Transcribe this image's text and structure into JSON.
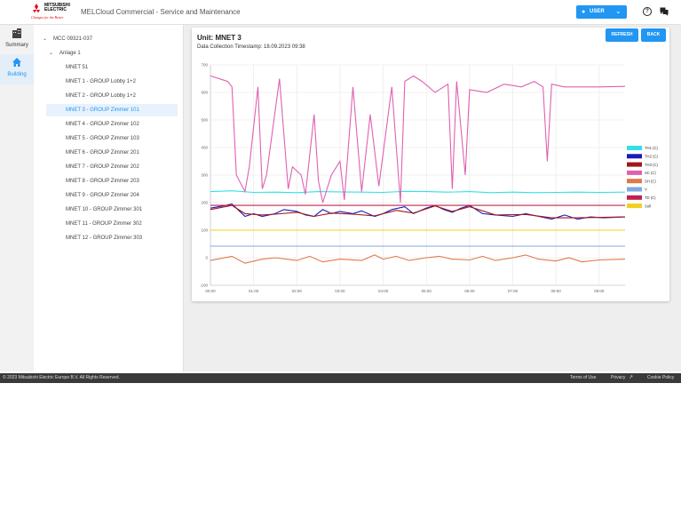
{
  "header": {
    "brand_line1": "MITSUBISHI",
    "brand_line2": "ELECTRIC",
    "brand_tagline": "Changes for the Better",
    "app_title": "MELCloud Commercial - Service and Maintenance",
    "user_button": "USER",
    "help_icon": "help-circle-icon",
    "chat_icon": "chat-icon"
  },
  "nav": {
    "items": [
      {
        "label": "Summary",
        "icon": "building-grid-icon"
      },
      {
        "label": "Building",
        "icon": "home-icon"
      }
    ]
  },
  "tree": {
    "root": "MCC 09321-037",
    "group": "Anlage 1",
    "units": [
      "MNET 51",
      "MNET 1 - GROUP Lobby 1+2",
      "MNET 2 - GROUP Lobby 1+2",
      "MNET 3 - GROUP Zimmer 101",
      "MNET 4 - GROUP Zimmer 102",
      "MNET 5 - GROUP Zimmer 103",
      "MNET 6 - GROUP Zimmer 201",
      "MNET 7 - GROUP Zimmer 202",
      "MNET 8 - GROUP Zimmer 203",
      "MNET 9 - GROUP Zimmer 204",
      "MNET 10 - GROUP Zimmer 301",
      "MNET 11 - GROUP Zimmer 302",
      "MNET 12 - GROUP Zimmer 303"
    ],
    "selected_index": 3
  },
  "main": {
    "unit_title": "Unit: MNET 3",
    "timestamp": "Data Collection Timestamp: 18.09.2023 09:38",
    "refresh_button": "REFRESH",
    "back_button": "BACK"
  },
  "chart_data": {
    "type": "line",
    "ylim": [
      -100,
      700
    ],
    "yticks": [
      -100,
      0,
      100,
      200,
      300,
      400,
      500,
      600,
      700
    ],
    "xticks": [
      "00:00",
      "01:00",
      "02:00",
      "03:00",
      "04:00",
      "05:00",
      "06:00",
      "07:00",
      "08:00",
      "09:00"
    ],
    "xlim_hours": [
      0,
      9.6
    ],
    "grid": true,
    "legend_position": "right",
    "series": [
      {
        "name": "TH1 (C)",
        "color": "#33e0e8",
        "values": [
          [
            0,
            240
          ],
          [
            0.5,
            243
          ],
          [
            1,
            237
          ],
          [
            1.5,
            238
          ],
          [
            2,
            236
          ],
          [
            2.5,
            240
          ],
          [
            3,
            239
          ],
          [
            3.5,
            238
          ],
          [
            4,
            237
          ],
          [
            4.5,
            241
          ],
          [
            5,
            240
          ],
          [
            5.5,
            238
          ],
          [
            6,
            240
          ],
          [
            6.5,
            236
          ],
          [
            7,
            238
          ],
          [
            7.5,
            236
          ],
          [
            8,
            237
          ],
          [
            8.5,
            238
          ],
          [
            9,
            237
          ],
          [
            9.6,
            238
          ]
        ]
      },
      {
        "name": "TH2 (C)",
        "color": "#1a1ab8",
        "values": [
          [
            0,
            180
          ],
          [
            0.2,
            185
          ],
          [
            0.5,
            195
          ],
          [
            0.6,
            180
          ],
          [
            0.8,
            150
          ],
          [
            1,
            160
          ],
          [
            1.2,
            150
          ],
          [
            1.5,
            160
          ],
          [
            1.7,
            175
          ],
          [
            2,
            168
          ],
          [
            2.2,
            155
          ],
          [
            2.4,
            150
          ],
          [
            2.6,
            175
          ],
          [
            2.8,
            160
          ],
          [
            3,
            168
          ],
          [
            3.3,
            160
          ],
          [
            3.5,
            170
          ],
          [
            3.8,
            150
          ],
          [
            4,
            160
          ],
          [
            4.2,
            175
          ],
          [
            4.5,
            185
          ],
          [
            4.7,
            160
          ],
          [
            5,
            180
          ],
          [
            5.2,
            190
          ],
          [
            5.4,
            175
          ],
          [
            5.6,
            165
          ],
          [
            5.8,
            180
          ],
          [
            6,
            190
          ],
          [
            6.3,
            160
          ],
          [
            6.6,
            155
          ],
          [
            7,
            150
          ],
          [
            7.3,
            160
          ],
          [
            7.6,
            150
          ],
          [
            7.9,
            140
          ],
          [
            8.2,
            155
          ],
          [
            8.5,
            140
          ],
          [
            8.8,
            148
          ],
          [
            9.1,
            145
          ],
          [
            9.6,
            148
          ]
        ]
      },
      {
        "name": "TH3 (C)",
        "color": "#a01818",
        "values": [
          [
            0,
            175
          ],
          [
            0.5,
            190
          ],
          [
            0.8,
            160
          ],
          [
            1.2,
            155
          ],
          [
            1.5,
            158
          ],
          [
            2,
            165
          ],
          [
            2.4,
            150
          ],
          [
            2.8,
            162
          ],
          [
            3.3,
            158
          ],
          [
            3.8,
            152
          ],
          [
            4.3,
            172
          ],
          [
            4.7,
            162
          ],
          [
            5.2,
            188
          ],
          [
            5.6,
            168
          ],
          [
            6,
            185
          ],
          [
            6.6,
            155
          ],
          [
            7.3,
            157
          ],
          [
            7.9,
            145
          ],
          [
            8.5,
            145
          ],
          [
            9.6,
            148
          ]
        ]
      },
      {
        "name": "SC (C)",
        "color": "#e060b0",
        "values": [
          [
            0,
            660
          ],
          [
            0.4,
            640
          ],
          [
            0.5,
            620
          ],
          [
            0.6,
            300
          ],
          [
            0.8,
            240
          ],
          [
            0.9,
            330
          ],
          [
            1.1,
            620
          ],
          [
            1.2,
            250
          ],
          [
            1.3,
            300
          ],
          [
            1.6,
            650
          ],
          [
            1.8,
            250
          ],
          [
            1.9,
            330
          ],
          [
            2.1,
            300
          ],
          [
            2.2,
            230
          ],
          [
            2.4,
            520
          ],
          [
            2.5,
            280
          ],
          [
            2.6,
            200
          ],
          [
            2.8,
            300
          ],
          [
            3,
            350
          ],
          [
            3.1,
            210
          ],
          [
            3.3,
            620
          ],
          [
            3.5,
            240
          ],
          [
            3.7,
            520
          ],
          [
            3.9,
            260
          ],
          [
            4.2,
            620
          ],
          [
            4.4,
            200
          ],
          [
            4.5,
            640
          ],
          [
            4.7,
            660
          ],
          [
            4.9,
            640
          ],
          [
            5.2,
            600
          ],
          [
            5.5,
            630
          ],
          [
            5.6,
            250
          ],
          [
            5.7,
            640
          ],
          [
            5.9,
            300
          ],
          [
            6,
            610
          ],
          [
            6.4,
            600
          ],
          [
            6.8,
            630
          ],
          [
            7.2,
            620
          ],
          [
            7.5,
            640
          ],
          [
            7.7,
            620
          ],
          [
            7.8,
            350
          ],
          [
            7.9,
            630
          ],
          [
            8.2,
            620
          ],
          [
            8.5,
            620
          ],
          [
            9,
            620
          ],
          [
            9.6,
            622
          ]
        ]
      },
      {
        "name": "SH (C)",
        "color": "#e07848",
        "values": [
          [
            0,
            -10
          ],
          [
            0.5,
            5
          ],
          [
            0.8,
            -20
          ],
          [
            1.2,
            -5
          ],
          [
            1.5,
            0
          ],
          [
            2,
            -10
          ],
          [
            2.3,
            5
          ],
          [
            2.6,
            -15
          ],
          [
            3,
            -5
          ],
          [
            3.5,
            -10
          ],
          [
            3.8,
            10
          ],
          [
            4,
            -5
          ],
          [
            4.3,
            5
          ],
          [
            4.6,
            -10
          ],
          [
            5,
            0
          ],
          [
            5.3,
            5
          ],
          [
            5.6,
            -5
          ],
          [
            6,
            -8
          ],
          [
            6.3,
            5
          ],
          [
            6.6,
            -10
          ],
          [
            7,
            0
          ],
          [
            7.3,
            10
          ],
          [
            7.6,
            -5
          ],
          [
            8,
            -12
          ],
          [
            8.3,
            0
          ],
          [
            8.6,
            -15
          ],
          [
            9,
            -8
          ],
          [
            9.6,
            -5
          ]
        ]
      },
      {
        "name": "V",
        "color": "#80a8e0",
        "values": [
          [
            0,
            42
          ],
          [
            9.6,
            42
          ]
        ]
      },
      {
        "name": "TD (C)",
        "color": "#c0204a",
        "values": [
          [
            0,
            190
          ],
          [
            9.6,
            190
          ]
        ]
      },
      {
        "name": "Soll",
        "color": "#f0d020",
        "values": [
          [
            0,
            100
          ],
          [
            9.6,
            100
          ]
        ]
      }
    ]
  },
  "footer": {
    "copyright": "© 2023 Mitsubishi Electric Europe B.V. All Rights Reserved.",
    "terms": "Terms of Use",
    "privacy": "Privacy",
    "cookie": "Cookie Policy"
  }
}
